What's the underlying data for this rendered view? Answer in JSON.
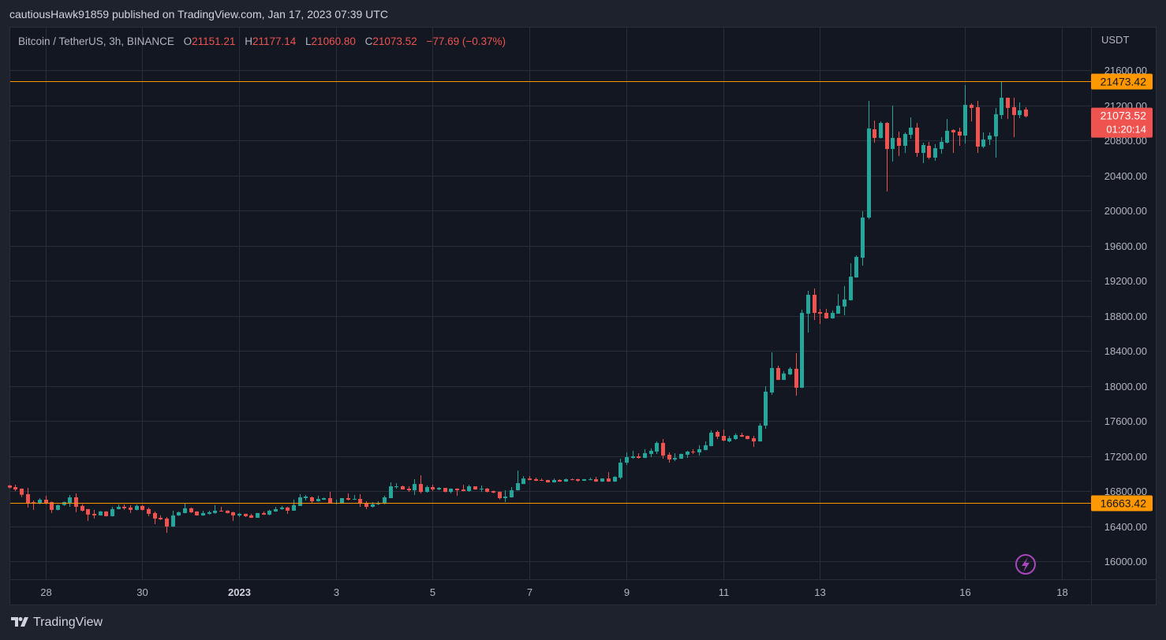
{
  "header": {
    "publisher_line": "cautiousHawk91859 published on TradingView.com, Jan 17, 2023 07:39 UTC"
  },
  "legend": {
    "symbol": "Bitcoin / TetherUS, 3h, BINANCE",
    "o_label": "O",
    "o_value": "21151.21",
    "h_label": "H",
    "h_value": "21177.14",
    "l_label": "L",
    "l_value": "21060.80",
    "c_label": "C",
    "c_value": "21073.52",
    "change": "−77.69 (−0.37%)"
  },
  "footer": {
    "logo_text": "TradingView",
    "logo_glyph": "17"
  },
  "colors": {
    "up": "#26a69a",
    "down": "#ef5350",
    "hline": "#ff9800",
    "grid": "#2a2e39",
    "text": "#b2b5be",
    "background": "#131722"
  },
  "chart_data": {
    "type": "candlestick",
    "interval": "3h",
    "first_bar_time": "2022-12-27T06:00Z",
    "currency_label": "USDT",
    "ylim": [
      15850,
      22050
    ],
    "grid": true,
    "y_ticks": [
      "16000.00",
      "16400.00",
      "16800.00",
      "17200.00",
      "17600.00",
      "18000.00",
      "18400.00",
      "18800.00",
      "19200.00",
      "19600.00",
      "20000.00",
      "20400.00",
      "20800.00",
      "21200.00",
      "21600.00"
    ],
    "x_ticks": [
      {
        "label": "28",
        "date": "2022-12-28",
        "bold": false
      },
      {
        "label": "30",
        "date": "2022-12-30",
        "bold": false
      },
      {
        "label": "2023",
        "date": "2023-01-01",
        "bold": true
      },
      {
        "label": "3",
        "date": "2023-01-03",
        "bold": false
      },
      {
        "label": "5",
        "date": "2023-01-05",
        "bold": false
      },
      {
        "label": "7",
        "date": "2023-01-07",
        "bold": false
      },
      {
        "label": "9",
        "date": "2023-01-09",
        "bold": false
      },
      {
        "label": "11",
        "date": "2023-01-11",
        "bold": false
      },
      {
        "label": "13",
        "date": "2023-01-13",
        "bold": false
      },
      {
        "label": "16",
        "date": "2023-01-16",
        "bold": false
      },
      {
        "label": "18",
        "date": "2023-01-18",
        "bold": false
      }
    ],
    "horizontal_lines": [
      {
        "price": 21473.42,
        "label": "21473.42"
      },
      {
        "price": 16663.42,
        "label": "16663.42"
      }
    ],
    "last_price": {
      "price": 21073.52,
      "label": "21073.52",
      "countdown": "01:20:14"
    },
    "ohlc": [
      [
        16863,
        16870,
        16830,
        16839
      ],
      [
        16845,
        16872,
        16800,
        16818
      ],
      [
        16827,
        16830,
        16731,
        16758
      ],
      [
        16764,
        16836,
        16612,
        16665
      ],
      [
        16674,
        16692,
        16585,
        16656
      ],
      [
        16656,
        16719,
        16650,
        16701
      ],
      [
        16701,
        16746,
        16648,
        16665
      ],
      [
        16674,
        16680,
        16549,
        16585
      ],
      [
        16585,
        16645,
        16580,
        16639
      ],
      [
        16642,
        16680,
        16630,
        16674
      ],
      [
        16665,
        16755,
        16620,
        16728
      ],
      [
        16728,
        16773,
        16558,
        16620
      ],
      [
        16630,
        16650,
        16566,
        16576
      ],
      [
        16594,
        16594,
        16459,
        16531
      ],
      [
        16540,
        16585,
        16486,
        16522
      ],
      [
        16522,
        16572,
        16520,
        16567
      ],
      [
        16567,
        16570,
        16510,
        16513
      ],
      [
        16513,
        16620,
        16510,
        16594
      ],
      [
        16594,
        16648,
        16590,
        16620
      ],
      [
        16621,
        16648,
        16585,
        16603
      ],
      [
        16612,
        16639,
        16549,
        16585
      ],
      [
        16585,
        16648,
        16580,
        16630
      ],
      [
        16630,
        16640,
        16578,
        16585
      ],
      [
        16594,
        16612,
        16513,
        16540
      ],
      [
        16549,
        16567,
        16423,
        16486
      ],
      [
        16495,
        16522,
        16470,
        16477
      ],
      [
        16486,
        16504,
        16324,
        16396
      ],
      [
        16396,
        16576,
        16390,
        16522
      ],
      [
        16522,
        16567,
        16517,
        16558
      ],
      [
        16549,
        16665,
        16545,
        16603
      ],
      [
        16603,
        16612,
        16550,
        16558
      ],
      [
        16567,
        16570,
        16520,
        16522
      ],
      [
        16522,
        16576,
        16518,
        16549
      ],
      [
        16540,
        16576,
        16530,
        16558
      ],
      [
        16549,
        16639,
        16540,
        16576
      ],
      [
        16576,
        16620,
        16565,
        16567
      ],
      [
        16576,
        16580,
        16545,
        16549
      ],
      [
        16558,
        16565,
        16459,
        16522
      ],
      [
        16522,
        16549,
        16504,
        16540
      ],
      [
        16540,
        16540,
        16504,
        16513
      ],
      [
        16522,
        16540,
        16492,
        16495
      ],
      [
        16495,
        16549,
        16495,
        16549
      ],
      [
        16549,
        16567,
        16528,
        16531
      ],
      [
        16531,
        16585,
        16522,
        16576
      ],
      [
        16567,
        16620,
        16563,
        16594
      ],
      [
        16594,
        16630,
        16585,
        16612
      ],
      [
        16612,
        16620,
        16540,
        16576
      ],
      [
        16576,
        16702,
        16576,
        16639
      ],
      [
        16630,
        16764,
        16630,
        16728
      ],
      [
        16719,
        16755,
        16692,
        16737
      ],
      [
        16728,
        16737,
        16665,
        16683
      ],
      [
        16683,
        16746,
        16680,
        16710
      ],
      [
        16701,
        16725,
        16698,
        16719
      ],
      [
        16719,
        16791,
        16656,
        16656
      ],
      [
        16656,
        16701,
        16650,
        16665
      ],
      [
        16656,
        16719,
        16656,
        16719
      ],
      [
        16719,
        16773,
        16692,
        16701
      ],
      [
        16701,
        16755,
        16700,
        16710
      ],
      [
        16710,
        16764,
        16620,
        16656
      ],
      [
        16656,
        16683,
        16594,
        16620
      ],
      [
        16620,
        16674,
        16612,
        16648
      ],
      [
        16650,
        16683,
        16640,
        16660
      ],
      [
        16656,
        16746,
        16650,
        16728
      ],
      [
        16719,
        16899,
        16719,
        16854
      ],
      [
        16845,
        16890,
        16827,
        16854
      ],
      [
        16854,
        16863,
        16818,
        16818
      ],
      [
        16827,
        16854,
        16790,
        16809
      ],
      [
        16809,
        16935,
        16755,
        16880
      ],
      [
        16880,
        16980,
        16773,
        16790
      ],
      [
        16790,
        16863,
        16782,
        16845
      ],
      [
        16845,
        16872,
        16800,
        16818
      ],
      [
        16818,
        16845,
        16809,
        16836
      ],
      [
        16836,
        16836,
        16785,
        16790
      ],
      [
        16790,
        16830,
        16773,
        16827
      ],
      [
        16827,
        16830,
        16746,
        16809
      ],
      [
        16818,
        16872,
        16795,
        16800
      ],
      [
        16800,
        16872,
        16790,
        16854
      ],
      [
        16854,
        16854,
        16815,
        16818
      ],
      [
        16820,
        16863,
        16790,
        16827
      ],
      [
        16827,
        16836,
        16785,
        16790
      ],
      [
        16800,
        16805,
        16775,
        16782
      ],
      [
        16790,
        16796,
        16705,
        16719
      ],
      [
        16719,
        16809,
        16674,
        16737
      ],
      [
        16728,
        16845,
        16725,
        16809
      ],
      [
        16809,
        17033,
        16805,
        16890
      ],
      [
        16880,
        16970,
        16880,
        16943
      ],
      [
        16943,
        16970,
        16925,
        16926
      ],
      [
        16935,
        16953,
        16915,
        16917
      ],
      [
        16926,
        16943,
        16915,
        16917
      ],
      [
        16926,
        16928,
        16897,
        16899
      ],
      [
        16899,
        16943,
        16897,
        16926
      ],
      [
        16926,
        16935,
        16905,
        16908
      ],
      [
        16908,
        16943,
        16905,
        16935
      ],
      [
        16935,
        16943,
        16923,
        16926
      ],
      [
        16935,
        16940,
        16905,
        16917
      ],
      [
        16917,
        16938,
        16915,
        16935
      ],
      [
        16926,
        16953,
        16923,
        16935
      ],
      [
        16935,
        16962,
        16905,
        16908
      ],
      [
        16908,
        16946,
        16905,
        16943
      ],
      [
        16943,
        17015,
        16905,
        16908
      ],
      [
        16908,
        16970,
        16905,
        16961
      ],
      [
        16953,
        17169,
        16935,
        17124
      ],
      [
        17124,
        17241,
        17097,
        17187
      ],
      [
        17178,
        17259,
        17169,
        17196
      ],
      [
        17196,
        17232,
        17169,
        17178
      ],
      [
        17178,
        17277,
        17175,
        17232
      ],
      [
        17223,
        17286,
        17187,
        17259
      ],
      [
        17250,
        17367,
        17223,
        17349
      ],
      [
        17349,
        17393,
        17169,
        17205
      ],
      [
        17214,
        17241,
        17124,
        17160
      ],
      [
        17160,
        17232,
        17142,
        17178
      ],
      [
        17169,
        17226,
        17166,
        17223
      ],
      [
        17214,
        17259,
        17178,
        17250
      ],
      [
        17250,
        17277,
        17223,
        17241
      ],
      [
        17241,
        17322,
        17205,
        17277
      ],
      [
        17268,
        17367,
        17265,
        17322
      ],
      [
        17313,
        17492,
        17310,
        17466
      ],
      [
        17474,
        17492,
        17393,
        17420
      ],
      [
        17429,
        17501,
        17370,
        17375
      ],
      [
        17366,
        17429,
        17357,
        17402
      ],
      [
        17393,
        17456,
        17384,
        17438
      ],
      [
        17438,
        17465,
        17417,
        17420
      ],
      [
        17429,
        17432,
        17390,
        17393
      ],
      [
        17402,
        17429,
        17303,
        17366
      ],
      [
        17366,
        17573,
        17363,
        17546
      ],
      [
        17546,
        17996,
        17510,
        17933
      ],
      [
        17924,
        18382,
        17897,
        18203
      ],
      [
        18203,
        18230,
        18065,
        18068
      ],
      [
        18068,
        18167,
        18065,
        18140
      ],
      [
        18131,
        18212,
        18122,
        18194
      ],
      [
        18194,
        18373,
        17888,
        17978
      ],
      [
        17978,
        18868,
        17975,
        18832
      ],
      [
        18823,
        19083,
        18607,
        19038
      ],
      [
        19038,
        19110,
        18751,
        18832
      ],
      [
        18841,
        18877,
        18706,
        18823
      ],
      [
        18832,
        18877,
        18765,
        18769
      ],
      [
        18769,
        18859,
        18765,
        18832
      ],
      [
        18823,
        19047,
        18820,
        18913
      ],
      [
        18904,
        19137,
        18805,
        18985
      ],
      [
        18976,
        19398,
        18973,
        19245
      ],
      [
        19236,
        19488,
        19233,
        19470
      ],
      [
        19461,
        19991,
        19371,
        19919
      ],
      [
        19919,
        21249,
        19900,
        20935
      ],
      [
        20926,
        21025,
        20773,
        20827
      ],
      [
        20827,
        21016,
        20820,
        20998
      ],
      [
        20998,
        21007,
        20216,
        20701
      ],
      [
        20701,
        21196,
        20557,
        20827
      ],
      [
        20827,
        20899,
        20620,
        20737
      ],
      [
        20737,
        20890,
        20656,
        20872
      ],
      [
        20863,
        21061,
        20818,
        20944
      ],
      [
        20944,
        20998,
        20611,
        20656
      ],
      [
        20656,
        20773,
        20539,
        20746
      ],
      [
        20737,
        20782,
        20584,
        20602
      ],
      [
        20602,
        20755,
        20566,
        20710
      ],
      [
        20701,
        20836,
        20647,
        20782
      ],
      [
        20773,
        21043,
        20764,
        20908
      ],
      [
        20917,
        20926,
        20656,
        20890
      ],
      [
        20899,
        20944,
        20737,
        20854
      ],
      [
        20854,
        21429,
        20764,
        21204
      ],
      [
        21204,
        21222,
        21016,
        21169
      ],
      [
        21178,
        21249,
        20656,
        20728
      ],
      [
        20728,
        20890,
        20710,
        20809
      ],
      [
        20809,
        20890,
        20746,
        20854
      ],
      [
        20845,
        21169,
        20602,
        21097
      ],
      [
        21088,
        21473,
        21043,
        21285
      ],
      [
        21285,
        21288,
        21043,
        21169
      ],
      [
        21178,
        21285,
        20836,
        21088
      ],
      [
        21088,
        21231,
        21052,
        21142
      ],
      [
        21151.21,
        21177.14,
        21060.8,
        21073.52
      ]
    ]
  }
}
